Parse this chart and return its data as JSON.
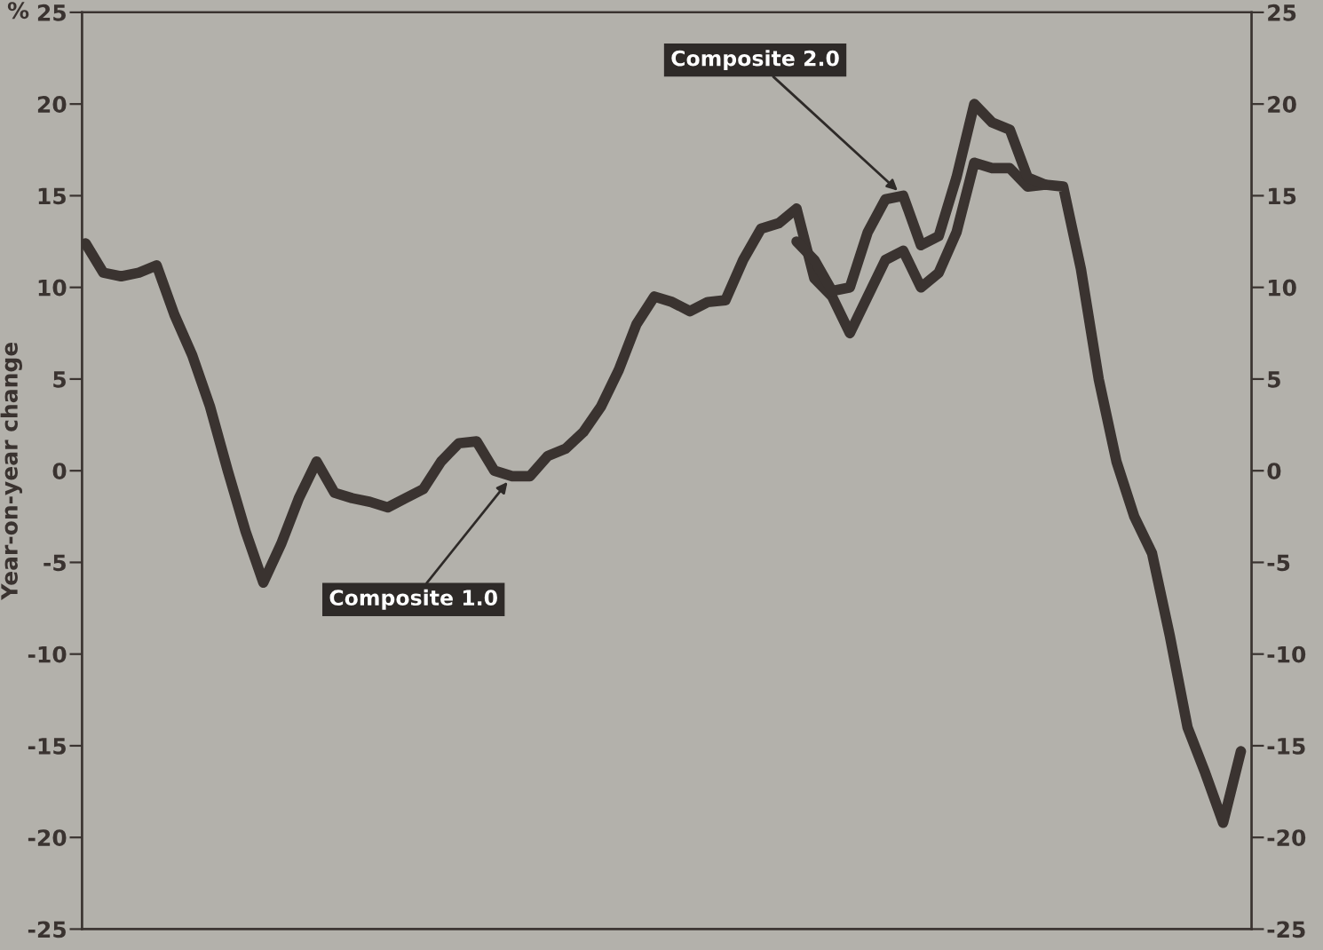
{
  "chart_data": {
    "type": "line",
    "ylabel": "Year-on-year change",
    "annotations": [
      "%"
    ],
    "categories": [
      null,
      null,
      null,
      null,
      null,
      null,
      null,
      null,
      null,
      null,
      null,
      null,
      null,
      null,
      null,
      null,
      null,
      null,
      null,
      null,
      null,
      null,
      null,
      null,
      null,
      null,
      null,
      null,
      null,
      null,
      null,
      null,
      null,
      null,
      null,
      null,
      null,
      null,
      null,
      null,
      null,
      null,
      null,
      null,
      null,
      null,
      null,
      null,
      null,
      null,
      null,
      null,
      null,
      null,
      null,
      null,
      null,
      null,
      null,
      null,
      null,
      null,
      null,
      null,
      null,
      null
    ],
    "series": [
      {
        "name": "Composite 1.0",
        "color": "#3a3330",
        "values": [
          12.4,
          10.8,
          10.6,
          10.8,
          11.2,
          8.5,
          6.3,
          3.5,
          0,
          -3.3,
          -6.1,
          -4,
          -1.5,
          0.5,
          -1.2,
          -1.5,
          -1.7,
          -2,
          -1.5,
          -1,
          0.5,
          1.5,
          1.6,
          0,
          -0.3,
          -0.3,
          0.8,
          1.2,
          2.1,
          3.5,
          5.5,
          8,
          9.5,
          9.2,
          8.7,
          9.2,
          9.3,
          11.5,
          13.2,
          13.5,
          14.3,
          10.5,
          9.5,
          7.5,
          9.5,
          11.5,
          12,
          10,
          10.8,
          13,
          16.8,
          16.5,
          16.5,
          15.5,
          15.6,
          15.5,
          11,
          5,
          0.5,
          -2.5,
          -4.5,
          -9,
          -14,
          -16.5,
          -19.2,
          -15.3
        ]
      },
      {
        "name": "Composite 2.0",
        "color": "#3a3330",
        "values": [
          null,
          null,
          null,
          null,
          null,
          null,
          null,
          null,
          null,
          null,
          null,
          null,
          null,
          null,
          null,
          null,
          null,
          null,
          null,
          null,
          null,
          null,
          null,
          null,
          null,
          null,
          null,
          null,
          null,
          null,
          null,
          null,
          null,
          null,
          null,
          null,
          null,
          null,
          null,
          null,
          12.5,
          11.5,
          9.8,
          10,
          13,
          14.8,
          15,
          12.3,
          12.8,
          16,
          20,
          19,
          18.6,
          16,
          15.6,
          null,
          null,
          null,
          null,
          null,
          null,
          null,
          null,
          null,
          null,
          null
        ]
      }
    ],
    "ylim": [
      -25,
      25
    ],
    "yticks": [
      -25,
      -20,
      -15,
      -10,
      -5,
      0,
      5,
      10,
      15,
      20,
      25
    ],
    "y2lim": [
      -25,
      25
    ],
    "y2ticks": [
      -25,
      -20,
      -15,
      -10,
      -5,
      0,
      5,
      10,
      15,
      20,
      25
    ],
    "grid": false,
    "legend": false,
    "line_style": "solid",
    "marker": "none"
  }
}
